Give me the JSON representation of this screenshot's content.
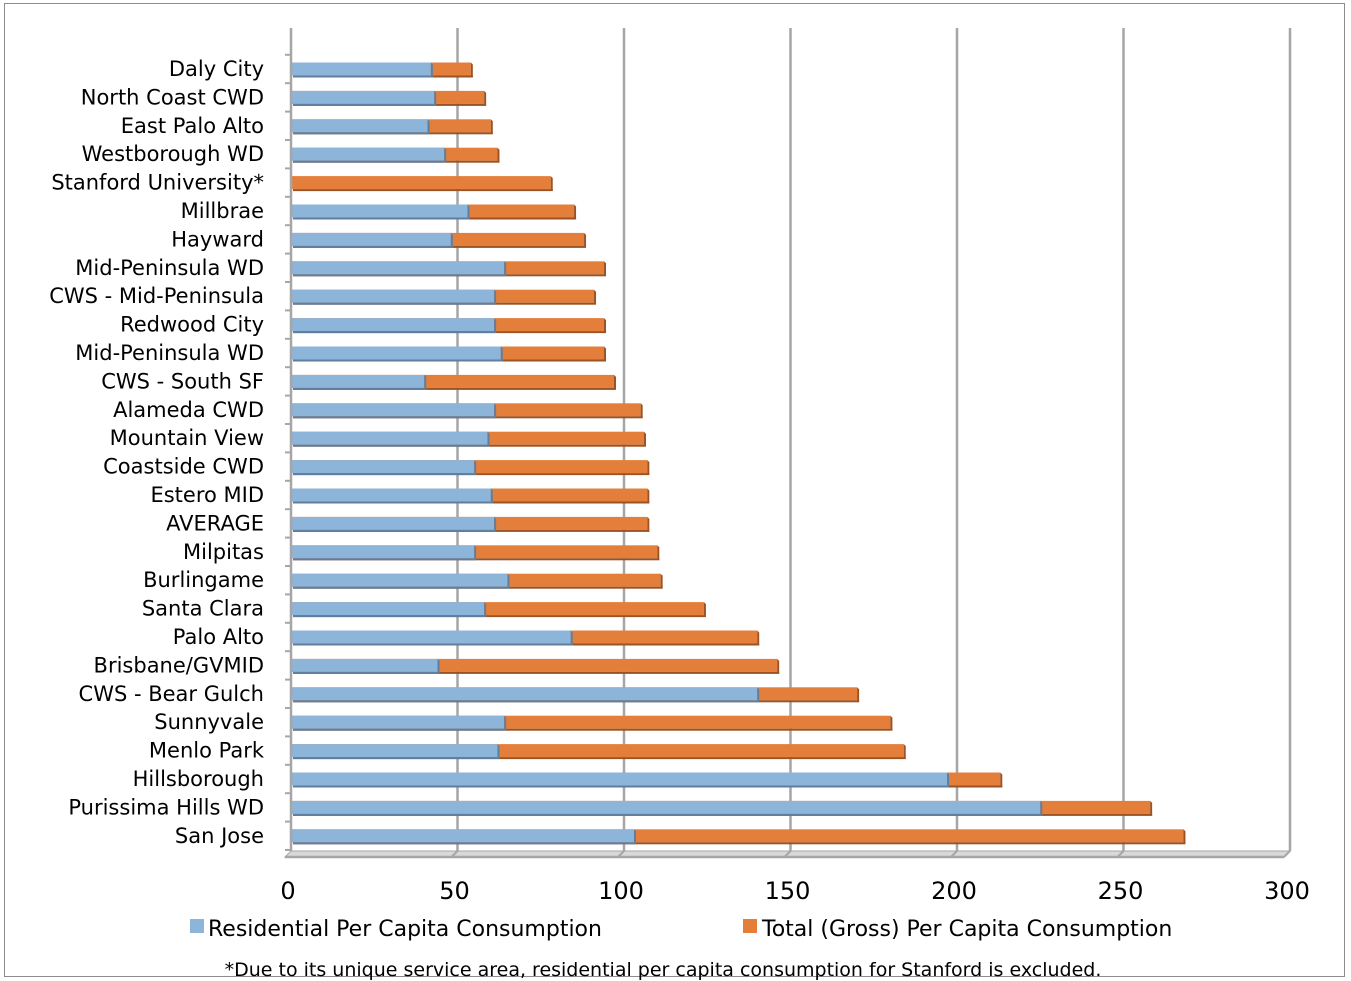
{
  "chart_data": {
    "type": "bar",
    "orientation": "horizontal",
    "stacked": false,
    "overlay": true,
    "title": "",
    "xlabel": "",
    "ylabel": "",
    "xlim": [
      0,
      300
    ],
    "x_ticks": [
      0,
      50,
      100,
      150,
      200,
      250,
      300
    ],
    "grid": "vertical major gridlines",
    "legend_position": "bottom",
    "categories": [
      "Daly City",
      "North Coast CWD",
      "East Palo Alto",
      "Westborough WD",
      "Stanford University*",
      "Millbrae",
      "Hayward",
      "Mid-Peninsula WD",
      "CWS - Mid-Peninsula",
      "Redwood City",
      "Mid-Peninsula WD",
      "CWS - South SF",
      "Alameda CWD",
      "Mountain View",
      "Coastside CWD",
      "Estero MID",
      "AVERAGE",
      "Milpitas",
      "Burlingame",
      "Santa Clara",
      "Palo Alto",
      "Brisbane/GVMID",
      "CWS - Bear Gulch",
      "Sunnyvale",
      "Menlo Park",
      "Hillsborough",
      "Purissima Hills WD",
      "San Jose"
    ],
    "series": [
      {
        "name": "Residential Per Capita Consumption",
        "color": "#8db4d9",
        "values": [
          42,
          43,
          41,
          46,
          null,
          53,
          48,
          64,
          61,
          61,
          63,
          40,
          61,
          59,
          55,
          60,
          61,
          55,
          65,
          58,
          84,
          44,
          140,
          64,
          62,
          197,
          225,
          103
        ]
      },
      {
        "name": "Total (Gross) Per Capita Consumption",
        "color": "#e37f3b",
        "values": [
          54,
          58,
          60,
          62,
          78,
          85,
          88,
          94,
          91,
          94,
          94,
          97,
          105,
          106,
          107,
          107,
          107,
          110,
          111,
          124,
          140,
          146,
          170,
          180,
          184,
          213,
          258,
          268
        ]
      }
    ]
  },
  "footnote": "*Due to its unique service area, residential per capita consumption for Stanford is excluded."
}
